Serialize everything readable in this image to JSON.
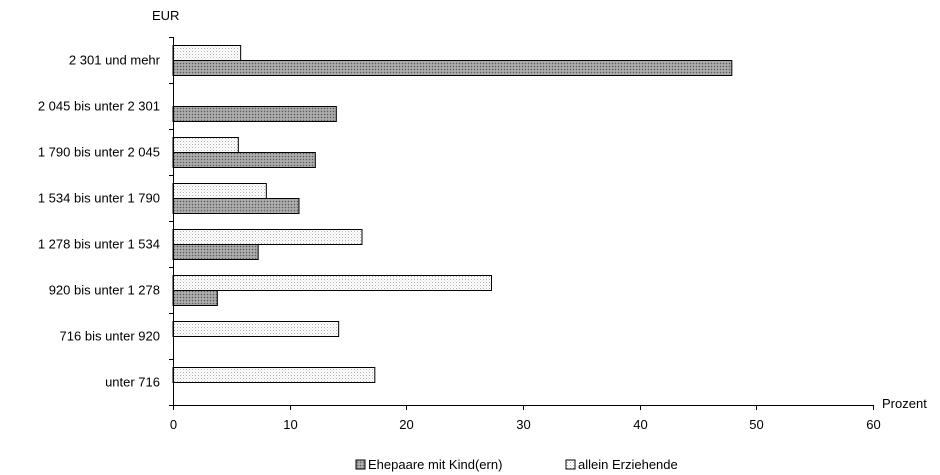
{
  "chart_data": {
    "type": "bar",
    "orientation": "horizontal",
    "y_unit_label": "EUR",
    "x_axis_label": "Prozent",
    "xlim": [
      0,
      60
    ],
    "x_ticks": [
      0,
      10,
      20,
      30,
      40,
      50,
      60
    ],
    "grid": false,
    "legend_position": "bottom",
    "categories": [
      "2 301 und mehr",
      "2 045 bis unter 2 301",
      "1 790 bis unter 2 045",
      "1 534 bis unter 1 790",
      "1 278 bis unter 1 534",
      "920 bis unter 1 278",
      "716 bis unter 920",
      "unter 716"
    ],
    "series": [
      {
        "name": "allein Erziehende",
        "pattern": "light-dotted",
        "values": [
          5.8,
          null,
          5.6,
          8.0,
          16.2,
          27.3,
          14.2,
          17.3
        ]
      },
      {
        "name": "Ehepaare mit Kind(ern)",
        "pattern": "dark-dotted",
        "values": [
          47.9,
          14.0,
          12.2,
          10.8,
          7.3,
          3.8,
          null,
          null
        ]
      }
    ],
    "legend": [
      "Ehepaare mit Kind(ern)",
      "allein Erziehende"
    ]
  }
}
